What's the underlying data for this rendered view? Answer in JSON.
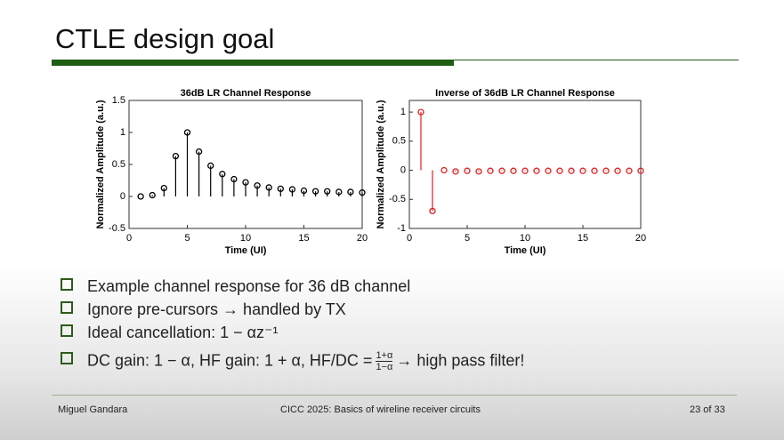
{
  "header": {
    "title": "CTLE design goal"
  },
  "chart_data": [
    {
      "type": "stem",
      "title": "36dB LR Channel Response",
      "x_label": "Time (UI)",
      "y_label": "Normalized Amplitude (a.u.)",
      "x": [
        1,
        2,
        3,
        4,
        5,
        6,
        7,
        8,
        9,
        10,
        11,
        12,
        13,
        14,
        15,
        16,
        17,
        18,
        19,
        20
      ],
      "values": [
        0,
        0.02,
        0.13,
        0.63,
        1.0,
        0.7,
        0.48,
        0.35,
        0.27,
        0.22,
        0.17,
        0.14,
        0.12,
        0.11,
        0.09,
        0.08,
        0.08,
        0.07,
        0.07,
        0.06
      ],
      "color": "#000000",
      "xlim": [
        0,
        20
      ],
      "ylim": [
        -0.5,
        1.5
      ],
      "xticks": [
        0,
        5,
        10,
        15,
        20
      ],
      "yticks": [
        -0.5,
        0,
        0.5,
        1,
        1.5
      ]
    },
    {
      "type": "stem",
      "title": "Inverse of 36dB LR Channel Response",
      "x_label": "Time (UI)",
      "y_label": "Normalized Amplitude (a.u.)",
      "x": [
        1,
        2,
        3,
        4,
        5,
        6,
        7,
        8,
        9,
        10,
        11,
        12,
        13,
        14,
        15,
        16,
        17,
        18,
        19,
        20
      ],
      "values": [
        1,
        -0.7,
        0,
        -0.02,
        -0.01,
        -0.02,
        -0.01,
        -0.01,
        -0.01,
        -0.01,
        -0.01,
        -0.01,
        -0.01,
        -0.01,
        -0.01,
        -0.01,
        -0.01,
        -0.01,
        -0.01,
        -0.01
      ],
      "color": "#e02020",
      "xlim": [
        0,
        20
      ],
      "ylim": [
        -1,
        1.2
      ],
      "xticks": [
        0,
        5,
        10,
        15,
        20
      ],
      "yticks": [
        -1,
        -0.5,
        0,
        0.5,
        1
      ]
    }
  ],
  "bullets": [
    "Example channel response for 36 dB channel",
    "Ignore pre-cursors → handled by TX",
    "Ideal cancellation: 1 − αz⁻¹",
    {
      "text": "DC gain: 1 − α, HF gain: 1 + α, HF/DC =",
      "numerator": "1+α",
      "denominator": "1−α",
      "suffix": "→ high pass filter!"
    }
  ],
  "footer": {
    "author": "Miguel Gandara",
    "event": "CICC 2025: Basics of wireline receiver circuits",
    "page": "23 of 33"
  }
}
